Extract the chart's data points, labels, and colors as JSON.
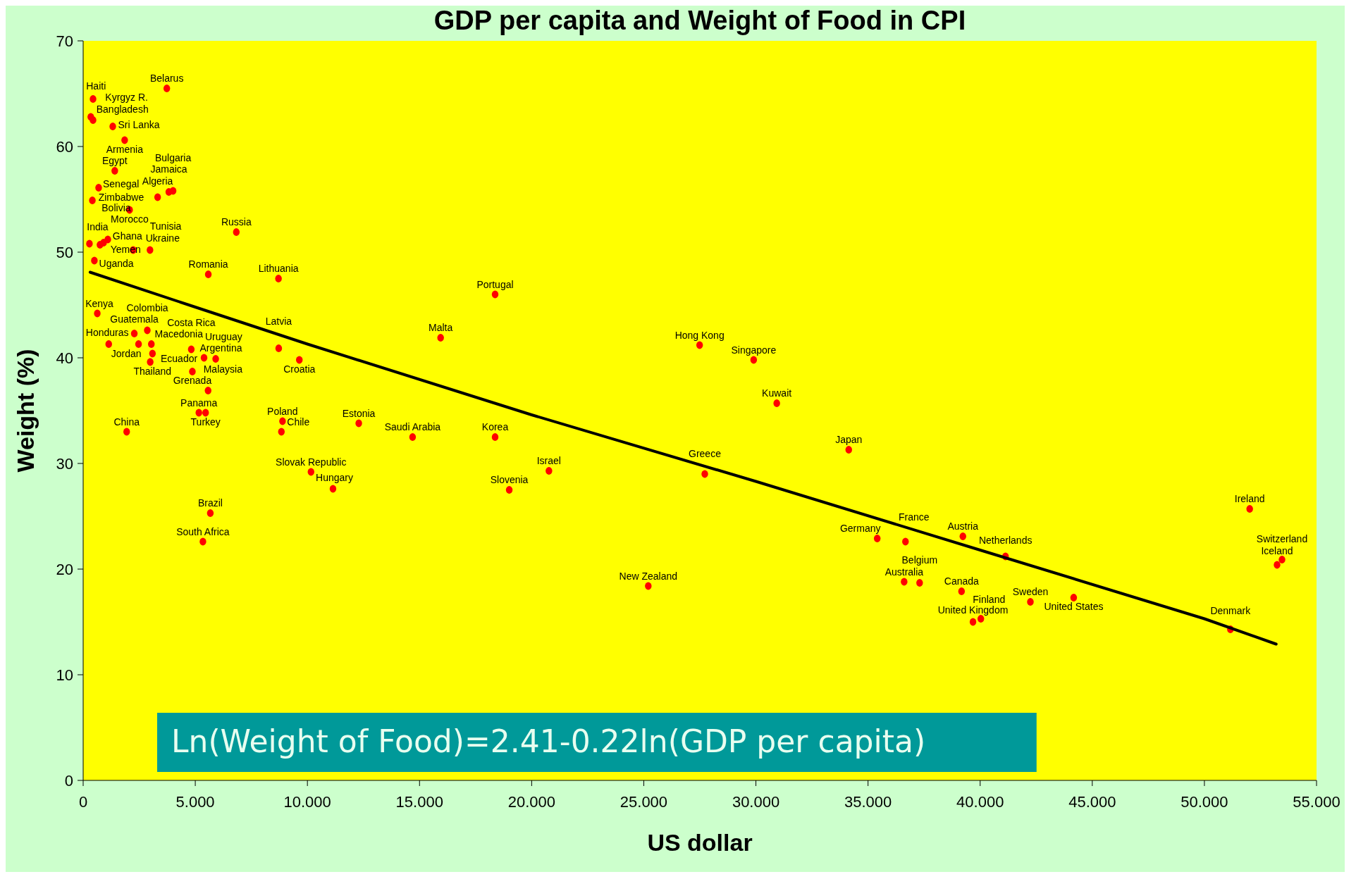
{
  "chart_data": {
    "type": "scatter",
    "title": "GDP per capita and Weight of Food in CPI",
    "xlabel": "US dollar",
    "ylabel": "Weight (%)",
    "xlim": [
      0,
      55
    ],
    "ylim": [
      0,
      70
    ],
    "xticks": [
      0,
      {
        "value": 5,
        "label": "5.000"
      },
      {
        "value": 10,
        "label": "10.000"
      },
      {
        "value": 15,
        "label": "15.000"
      },
      {
        "value": 20,
        "label": "20.000"
      },
      {
        "value": 25,
        "label": "25.000"
      },
      {
        "value": 30,
        "label": "30.000"
      },
      {
        "value": 35,
        "label": "35.000"
      },
      {
        "value": 40,
        "label": "40.000"
      },
      {
        "value": 45,
        "label": "45.000"
      },
      {
        "value": 50,
        "label": "50.000"
      },
      {
        "value": 55,
        "label": "55.000"
      }
    ],
    "yticks": [
      0,
      10,
      20,
      30,
      40,
      50,
      60,
      70
    ],
    "grid": false,
    "series": [
      {
        "marker": "circle",
        "color": "#ff0000",
        "x": [
          0.44,
          3.73,
          0.34,
          0.44,
          1.32,
          1.85,
          1.41,
          0.69,
          0.41,
          2.07,
          3.32,
          3.82,
          4.01,
          0.28,
          0.5,
          0.75,
          0.91,
          1.1,
          2.23,
          2.98,
          6.83,
          5.58,
          8.71,
          0.63,
          1.14,
          2.28,
          2.47,
          2.86,
          3.04,
          3.09,
          2.99,
          4.82,
          5.39,
          5.91,
          4.87,
          5.57,
          5.16,
          5.46,
          1.94,
          8.72,
          9.64,
          8.89,
          8.84,
          10.16,
          11.14,
          5.67,
          5.34,
          12.29,
          14.69,
          15.94,
          18.37,
          18.37,
          19.0,
          20.77,
          27.49,
          29.9,
          30.93,
          34.14,
          27.72,
          25.2,
          35.41,
          36.67,
          36.61,
          37.3,
          39.23,
          39.17,
          41.13,
          39.68,
          40.03,
          42.24,
          44.17,
          51.16,
          52.02,
          53.24,
          53.46
        ],
        "values": [
          64.5,
          65.5,
          62.8,
          62.5,
          61.9,
          60.6,
          57.7,
          56.1,
          54.9,
          54.0,
          55.2,
          55.7,
          55.8,
          50.8,
          49.2,
          50.7,
          50.9,
          51.2,
          50.2,
          50.2,
          51.9,
          47.9,
          47.5,
          44.2,
          41.3,
          42.3,
          41.3,
          42.6,
          41.3,
          40.4,
          39.6,
          40.8,
          40.0,
          39.9,
          38.7,
          36.9,
          34.8,
          34.8,
          33.0,
          40.9,
          39.8,
          34.0,
          33.0,
          29.2,
          27.6,
          25.3,
          22.6,
          33.8,
          32.5,
          41.9,
          46.0,
          32.5,
          27.5,
          29.3,
          41.2,
          39.8,
          35.7,
          31.3,
          29.0,
          18.4,
          22.9,
          22.6,
          18.8,
          18.7,
          23.1,
          17.9,
          21.2,
          15.0,
          15.3,
          16.9,
          17.3,
          14.3,
          25.7,
          20.4,
          20.9
        ]
      },
      {
        "type": "line",
        "color": "#000000",
        "x": [
          0.31,
          5,
          10,
          20,
          30,
          40,
          50,
          53.2
        ],
        "values": [
          48.1,
          44.8,
          41.3,
          34.6,
          28.3,
          21.8,
          15.3,
          12.9
        ]
      }
    ],
    "annotations": [
      {
        "text": "Haiti",
        "x": 0.44,
        "y": 64.5
      },
      {
        "text": "Belarus",
        "x": 3.73,
        "y": 65.5
      },
      {
        "text": "Bangladesh",
        "x": 0.34,
        "y": 62.8
      },
      {
        "text": "Kyrgyz R.",
        "x": 0.44,
        "y": 62.5
      },
      {
        "text": "Sri Lanka",
        "x": 1.32,
        "y": 61.9
      },
      {
        "text": "Armenia",
        "x": 1.85,
        "y": 60.6
      },
      {
        "text": "Egypt",
        "x": 1.41,
        "y": 57.7
      },
      {
        "text": "Senegal",
        "x": 0.69,
        "y": 56.1
      },
      {
        "text": "Zimbabwe",
        "x": 0.41,
        "y": 54.9
      },
      {
        "text": "Morocco",
        "x": 2.07,
        "y": 54.0
      },
      {
        "text": "Algeria",
        "x": 3.32,
        "y": 55.2
      },
      {
        "text": "Jamaica",
        "x": 3.82,
        "y": 55.7
      },
      {
        "text": "Bulgaria",
        "x": 4.01,
        "y": 55.8
      },
      {
        "text": "Ghana",
        "x": 0.28,
        "y": 50.8
      },
      {
        "text": "Uganda",
        "x": 0.5,
        "y": 49.2
      },
      {
        "text": "Yemen",
        "x": 0.75,
        "y": 50.7
      },
      {
        "text": "India",
        "x": 0.91,
        "y": 50.9
      },
      {
        "text": "Bolivia",
        "x": 1.1,
        "y": 51.2
      },
      {
        "text": "Ukraine",
        "x": 2.23,
        "y": 50.2
      },
      {
        "text": "Tunisia",
        "x": 2.98,
        "y": 50.2
      },
      {
        "text": "Russia",
        "x": 6.83,
        "y": 51.9
      },
      {
        "text": "Romania",
        "x": 5.58,
        "y": 47.9
      },
      {
        "text": "Lithuania",
        "x": 8.71,
        "y": 47.5
      },
      {
        "text": "Kenya",
        "x": 0.63,
        "y": 44.2
      },
      {
        "text": "Honduras",
        "x": 1.14,
        "y": 41.3
      },
      {
        "text": "Guatemala",
        "x": 2.28,
        "y": 42.3
      },
      {
        "text": "Jordan",
        "x": 2.47,
        "y": 41.3
      },
      {
        "text": "Colombia",
        "x": 2.86,
        "y": 42.6
      },
      {
        "text": "Macedonia",
        "x": 3.04,
        "y": 41.3
      },
      {
        "text": "Thailand",
        "x": 3.09,
        "y": 40.4
      },
      {
        "text": "Ecuador",
        "x": 2.99,
        "y": 39.6
      },
      {
        "text": "Costa Rica",
        "x": 4.82,
        "y": 40.8
      },
      {
        "text": "Argentina",
        "x": 5.39,
        "y": 40.0
      },
      {
        "text": "Uruguay",
        "x": 5.91,
        "y": 39.9
      },
      {
        "text": "Grenada",
        "x": 4.87,
        "y": 38.7
      },
      {
        "text": "Malaysia",
        "x": 5.57,
        "y": 36.9
      },
      {
        "text": "Panama",
        "x": 5.16,
        "y": 34.8
      },
      {
        "text": "Turkey",
        "x": 5.46,
        "y": 34.8
      },
      {
        "text": "China",
        "x": 1.94,
        "y": 33.0
      },
      {
        "text": "Latvia",
        "x": 8.72,
        "y": 40.9
      },
      {
        "text": "Croatia",
        "x": 9.64,
        "y": 39.8
      },
      {
        "text": "Poland",
        "x": 8.89,
        "y": 34.0
      },
      {
        "text": "Chile",
        "x": 8.84,
        "y": 33.0
      },
      {
        "text": "Slovak Republic",
        "x": 10.16,
        "y": 29.2
      },
      {
        "text": "Hungary",
        "x": 11.14,
        "y": 27.6
      },
      {
        "text": "Brazil",
        "x": 5.67,
        "y": 25.3
      },
      {
        "text": "South Africa",
        "x": 5.34,
        "y": 22.6
      },
      {
        "text": "Estonia",
        "x": 12.29,
        "y": 33.8
      },
      {
        "text": "Saudi Arabia",
        "x": 14.69,
        "y": 32.5
      },
      {
        "text": "Malta",
        "x": 15.94,
        "y": 41.9
      },
      {
        "text": "Portugal",
        "x": 18.37,
        "y": 46.0
      },
      {
        "text": "Korea",
        "x": 18.37,
        "y": 32.5
      },
      {
        "text": "Slovenia",
        "x": 19.0,
        "y": 27.5
      },
      {
        "text": "Israel",
        "x": 20.77,
        "y": 29.3
      },
      {
        "text": "Hong Kong",
        "x": 27.49,
        "y": 41.2
      },
      {
        "text": "Singapore",
        "x": 29.9,
        "y": 39.8
      },
      {
        "text": "Kuwait",
        "x": 30.93,
        "y": 35.7
      },
      {
        "text": "Japan",
        "x": 34.14,
        "y": 31.3
      },
      {
        "text": "Greece",
        "x": 27.72,
        "y": 29.0
      },
      {
        "text": "New Zealand",
        "x": 25.2,
        "y": 18.4
      },
      {
        "text": "Germany",
        "x": 35.41,
        "y": 22.9
      },
      {
        "text": "France",
        "x": 36.67,
        "y": 22.6
      },
      {
        "text": "Australia",
        "x": 36.61,
        "y": 18.8
      },
      {
        "text": "Belgium",
        "x": 37.3,
        "y": 18.7
      },
      {
        "text": "Austria",
        "x": 39.23,
        "y": 23.1
      },
      {
        "text": "Canada",
        "x": 39.17,
        "y": 17.9
      },
      {
        "text": "Netherlands",
        "x": 41.13,
        "y": 21.2
      },
      {
        "text": "United Kingdom",
        "x": 39.68,
        "y": 15.0
      },
      {
        "text": "Finland",
        "x": 40.03,
        "y": 15.3
      },
      {
        "text": "Sweden",
        "x": 42.24,
        "y": 16.9
      },
      {
        "text": "United States",
        "x": 44.17,
        "y": 17.3
      },
      {
        "text": "Denmark",
        "x": 51.16,
        "y": 14.3
      },
      {
        "text": "Ireland",
        "x": 52.02,
        "y": 25.7
      },
      {
        "text": "Iceland",
        "x": 53.24,
        "y": 20.4
      },
      {
        "text": "Switzerland",
        "x": 53.46,
        "y": 20.9
      },
      "Ln(Weight of Food)=2.41-0.22ln(GDP per capita)"
    ]
  }
}
